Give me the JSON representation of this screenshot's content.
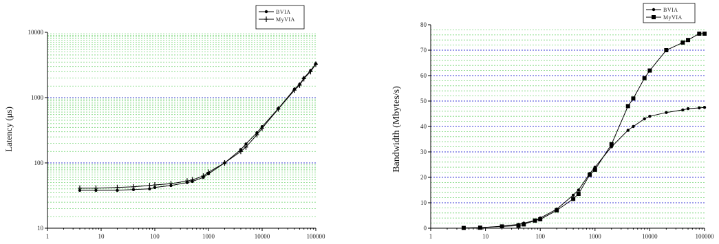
{
  "chart_data": [
    {
      "type": "line",
      "xscale": "log",
      "yscale": "log",
      "xlim": [
        1,
        100000
      ],
      "ylim": [
        10,
        10000
      ],
      "xticks": [
        "1",
        "10",
        "100",
        "1000",
        "10000",
        "100000"
      ],
      "yticks": [
        "10",
        "100",
        "1000",
        "10000"
      ],
      "ylabel": "Latency (μs)",
      "xlabel": "",
      "grid": true,
      "legend_position": "top-right",
      "series": [
        {
          "name": "BVIA",
          "marker": "circle",
          "x": [
            4,
            8,
            20,
            40,
            80,
            100,
            200,
            400,
            500,
            800,
            1000,
            2000,
            4000,
            5000,
            8000,
            10000,
            20000,
            40000,
            50000,
            60000,
            80000,
            100000
          ],
          "y": [
            38,
            38,
            38,
            39,
            40,
            42,
            45,
            50,
            52,
            60,
            68,
            100,
            160,
            195,
            290,
            360,
            680,
            1350,
            1600,
            2000,
            2600,
            3300
          ]
        },
        {
          "name": "MyVIA",
          "marker": "plus",
          "x": [
            4,
            8,
            20,
            40,
            80,
            100,
            200,
            400,
            500,
            800,
            1000,
            2000,
            4000,
            5000,
            8000,
            10000,
            20000,
            40000,
            50000,
            60000,
            80000,
            100000
          ],
          "y": [
            41,
            41,
            42,
            43,
            45,
            46,
            48,
            53,
            55,
            63,
            72,
            100,
            150,
            175,
            270,
            340,
            670,
            1300,
            1550,
            1950,
            2500,
            3250
          ]
        }
      ]
    },
    {
      "type": "line",
      "xscale": "log",
      "yscale": "linear",
      "xlim": [
        1,
        100000
      ],
      "ylim": [
        0,
        80
      ],
      "xticks": [
        "1",
        "10",
        "100",
        "1000",
        "10000",
        "100000"
      ],
      "yticks": [
        "0",
        "10",
        "20",
        "30",
        "40",
        "50",
        "60",
        "70",
        "80"
      ],
      "ylabel": "Bandwidth (Mbytes/s)",
      "xlabel": "",
      "grid": true,
      "legend_position": "top-right",
      "series": [
        {
          "name": "BVIA",
          "marker": "circle",
          "x": [
            4,
            8,
            20,
            40,
            50,
            80,
            100,
            200,
            400,
            500,
            800,
            1000,
            2000,
            4000,
            5000,
            8000,
            10000,
            20000,
            40000,
            50000,
            80000,
            100000
          ],
          "y": [
            0.1,
            0.2,
            0.8,
            1.5,
            2,
            3,
            4,
            7.5,
            13,
            15,
            21.5,
            24,
            32,
            38.5,
            40,
            43,
            44,
            45.5,
            46.5,
            47,
            47.3,
            47.5
          ]
        },
        {
          "name": "MyVIA",
          "marker": "square",
          "x": [
            4,
            8,
            20,
            40,
            50,
            80,
            100,
            200,
            400,
            500,
            800,
            1000,
            2000,
            4000,
            5000,
            8000,
            10000,
            20000,
            40000,
            50000,
            80000,
            100000
          ],
          "y": [
            0.1,
            0.2,
            0.7,
            1,
            1.5,
            3,
            3.5,
            7,
            11.5,
            13.5,
            21,
            23,
            33,
            48,
            51,
            59,
            62,
            70,
            73,
            74,
            76.5,
            76.5
          ]
        }
      ]
    }
  ]
}
